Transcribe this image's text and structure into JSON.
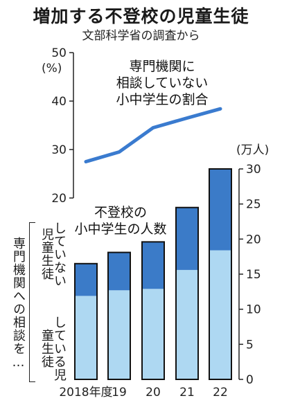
{
  "title": "増加する不登校の児童生徒",
  "subtitle": "文部科学省の調査から",
  "chart_data": [
    {
      "type": "line",
      "title": "専門機関に相談していない小中学生の割合",
      "ylabel": "(%)",
      "ylim": [
        20,
        50
      ],
      "yticks": [
        "20",
        "30",
        "40",
        "50"
      ],
      "categories": [
        "2018年度",
        "19",
        "20",
        "21",
        "22"
      ],
      "values": [
        27.5,
        29.5,
        34.5,
        36.5,
        38.4
      ],
      "color": "#3a7bcf"
    },
    {
      "type": "bar",
      "stacked": true,
      "title": "不登校の小中学生の人数",
      "ylabel": "(万人)",
      "ylim": [
        0,
        30
      ],
      "yticks": [
        "0",
        "5",
        "10",
        "15",
        "20",
        "25",
        "30"
      ],
      "categories": [
        "2018年度",
        "19",
        "20",
        "21",
        "22"
      ],
      "series": [
        {
          "name": "している",
          "values": [
            11.9,
            12.7,
            12.9,
            15.6,
            18.4
          ],
          "color": "#aed8f2"
        },
        {
          "name": "していない",
          "values": [
            4.6,
            5.4,
            6.7,
            8.9,
            11.6
          ],
          "color": "#3b7bc8"
        }
      ]
    }
  ],
  "side_labels": {
    "group_label": "専門機関への相談を…",
    "not_consulting": "していない児童生徒",
    "consulting": "している児童生徒"
  },
  "line_label": [
    "専門機関に",
    "相談していない",
    "小中学生の割合"
  ],
  "bar_label": [
    "不登校の",
    "小中学生の人数"
  ]
}
